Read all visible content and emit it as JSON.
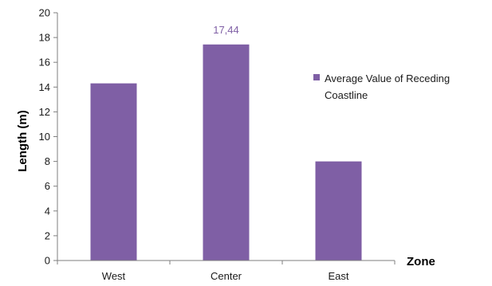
{
  "chart_data": {
    "type": "bar",
    "categories": [
      "West",
      "Center",
      "East"
    ],
    "series": [
      {
        "name": "Average Value of Receding Coastline",
        "values": [
          14.3,
          17.44,
          8.0
        ],
        "color": "#7f5fa5"
      }
    ],
    "data_labels": [
      {
        "category": "Center",
        "text": "17,44",
        "color": "#7f5fa5"
      }
    ],
    "xlabel": "Zone",
    "ylabel": "Length (m)",
    "ylim": [
      0,
      20
    ],
    "yticks": [
      0,
      2,
      4,
      6,
      8,
      10,
      12,
      14,
      16,
      18,
      20
    ],
    "ytick_labels": [
      "0",
      "2",
      "4",
      "6",
      "8",
      "10",
      "12",
      "14",
      "16",
      "18",
      "20"
    ],
    "grid": false,
    "legend": {
      "placement": "right",
      "lines": [
        "Average Value of Receding",
        "Coastline"
      ]
    }
  }
}
